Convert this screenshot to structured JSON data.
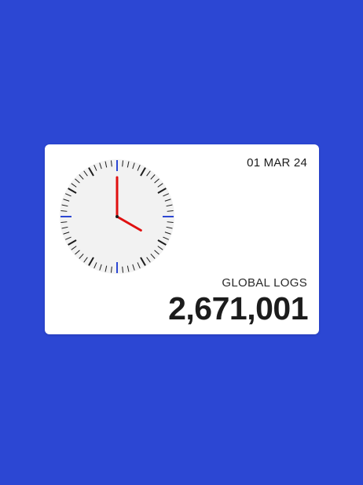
{
  "theme": {
    "background": "#2c47d3",
    "card": "#ffffff",
    "clock_face": "#f2f2f2",
    "tick": "#1c1c1c",
    "cardinal_tick": "#2c47d3",
    "hand": "#e01010"
  },
  "widget": {
    "date": "01 MAR 24",
    "label": "GLOBAL LOGS",
    "count": "2,671,001"
  },
  "clock": {
    "hour": 4,
    "minute": 0
  }
}
